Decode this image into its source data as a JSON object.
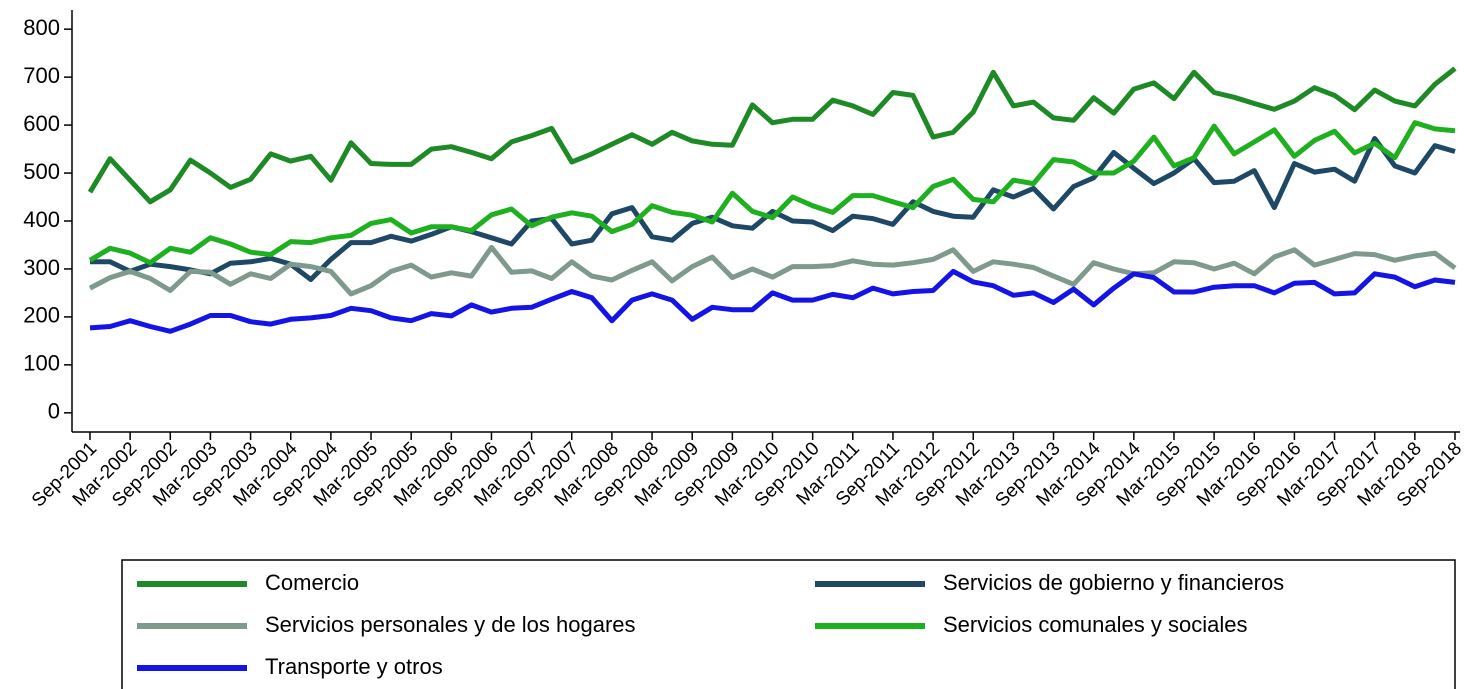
{
  "chart_data": {
    "type": "line",
    "categories": [
      "Sep-2001",
      null,
      "Mar-2002",
      null,
      "Sep-2002",
      null,
      "Mar-2003",
      null,
      "Sep-2003",
      null,
      "Mar-2004",
      null,
      "Sep-2004",
      null,
      "Mar-2005",
      null,
      "Sep-2005",
      null,
      "Mar-2006",
      null,
      "Sep-2006",
      null,
      "Mar-2007",
      null,
      "Sep-2007",
      null,
      "Mar-2008",
      null,
      "Sep-2008",
      null,
      "Mar-2009",
      null,
      "Sep-2009",
      null,
      "Mar-2010",
      null,
      "Sep-2010",
      null,
      "Mar-2011",
      null,
      "Sep-2011",
      null,
      "Mar-2012",
      null,
      "Sep-2012",
      null,
      "Mar-2013",
      null,
      "Sep-2013",
      null,
      "Mar-2014",
      null,
      "Sep-2014",
      null,
      "Mar-2015",
      null,
      "Sep-2015",
      null,
      "Mar-2016",
      null,
      "Sep-2016",
      null,
      "Mar-2017",
      null,
      "Sep-2017",
      null,
      "Mar-2018",
      null,
      "Sep-2018"
    ],
    "series": [
      {
        "name": "Comercio",
        "color": "#1e8a26",
        "values": [
          460,
          530,
          485,
          440,
          465,
          527,
          500,
          470,
          487,
          540,
          525,
          535,
          485,
          563,
          520,
          518,
          518,
          550,
          555,
          543,
          530,
          565,
          578,
          593,
          523,
          540,
          560,
          580,
          560,
          585,
          567,
          560,
          558,
          642,
          605,
          612,
          612,
          652,
          640,
          622,
          668,
          662,
          575,
          585,
          627,
          710,
          640,
          648,
          615,
          610,
          657,
          625,
          675,
          688,
          655,
          710,
          668,
          658,
          645,
          633,
          650,
          678,
          662,
          632,
          673,
          650,
          640,
          685,
          718
        ]
      },
      {
        "name": "Servicios de gobierno y financieros",
        "color": "#1f4866",
        "values": [
          315,
          315,
          295,
          310,
          305,
          298,
          290,
          312,
          315,
          322,
          310,
          278,
          320,
          355,
          355,
          368,
          358,
          372,
          388,
          378,
          365,
          352,
          400,
          405,
          352,
          360,
          415,
          428,
          367,
          360,
          395,
          408,
          390,
          385,
          420,
          400,
          398,
          380,
          410,
          405,
          393,
          440,
          420,
          410,
          408,
          465,
          450,
          468,
          425,
          472,
          490,
          543,
          510,
          478,
          500,
          530,
          480,
          483,
          505,
          428,
          520,
          502,
          508,
          483,
          572,
          515,
          500,
          557,
          545
        ]
      },
      {
        "name": "Servicios personales y de los hogares",
        "color": "#7d9a8c",
        "values": [
          260,
          282,
          295,
          280,
          255,
          295,
          293,
          268,
          290,
          280,
          310,
          305,
          295,
          248,
          265,
          295,
          308,
          283,
          292,
          285,
          345,
          293,
          296,
          280,
          315,
          285,
          277,
          297,
          315,
          275,
          305,
          325,
          282,
          300,
          283,
          305,
          305,
          307,
          317,
          310,
          308,
          313,
          320,
          340,
          295,
          315,
          310,
          303,
          285,
          268,
          313,
          300,
          290,
          292,
          315,
          313,
          300,
          312,
          290,
          325,
          340,
          308,
          320,
          332,
          330,
          318,
          327,
          333,
          302
        ]
      },
      {
        "name": "Servicios comunales y sociales",
        "color": "#1fb020",
        "values": [
          318,
          343,
          333,
          313,
          343,
          335,
          365,
          352,
          335,
          330,
          357,
          355,
          365,
          370,
          395,
          403,
          375,
          388,
          388,
          380,
          413,
          425,
          390,
          408,
          417,
          410,
          378,
          393,
          432,
          418,
          412,
          398,
          458,
          420,
          407,
          450,
          432,
          418,
          453,
          453,
          440,
          428,
          472,
          487,
          445,
          440,
          485,
          478,
          528,
          523,
          500,
          500,
          525,
          575,
          515,
          532,
          598,
          540,
          565,
          590,
          535,
          568,
          587,
          542,
          562,
          532,
          605,
          592,
          588
        ]
      },
      {
        "name": "Transporte y otros",
        "color": "#1414e6",
        "values": [
          177,
          180,
          192,
          180,
          170,
          185,
          203,
          203,
          190,
          185,
          195,
          198,
          203,
          218,
          213,
          198,
          192,
          207,
          202,
          225,
          210,
          218,
          220,
          237,
          253,
          240,
          192,
          235,
          248,
          235,
          195,
          220,
          215,
          215,
          250,
          235,
          235,
          247,
          240,
          260,
          248,
          253,
          255,
          295,
          273,
          265,
          245,
          250,
          230,
          258,
          225,
          260,
          290,
          282,
          252,
          252,
          262,
          265,
          265,
          250,
          270,
          272,
          248,
          250,
          290,
          283,
          263,
          277,
          272
        ]
      }
    ],
    "ylim": [
      -40,
      840
    ],
    "yticks": [
      0,
      100,
      200,
      300,
      400,
      500,
      600,
      700,
      800
    ],
    "grid": false
  }
}
